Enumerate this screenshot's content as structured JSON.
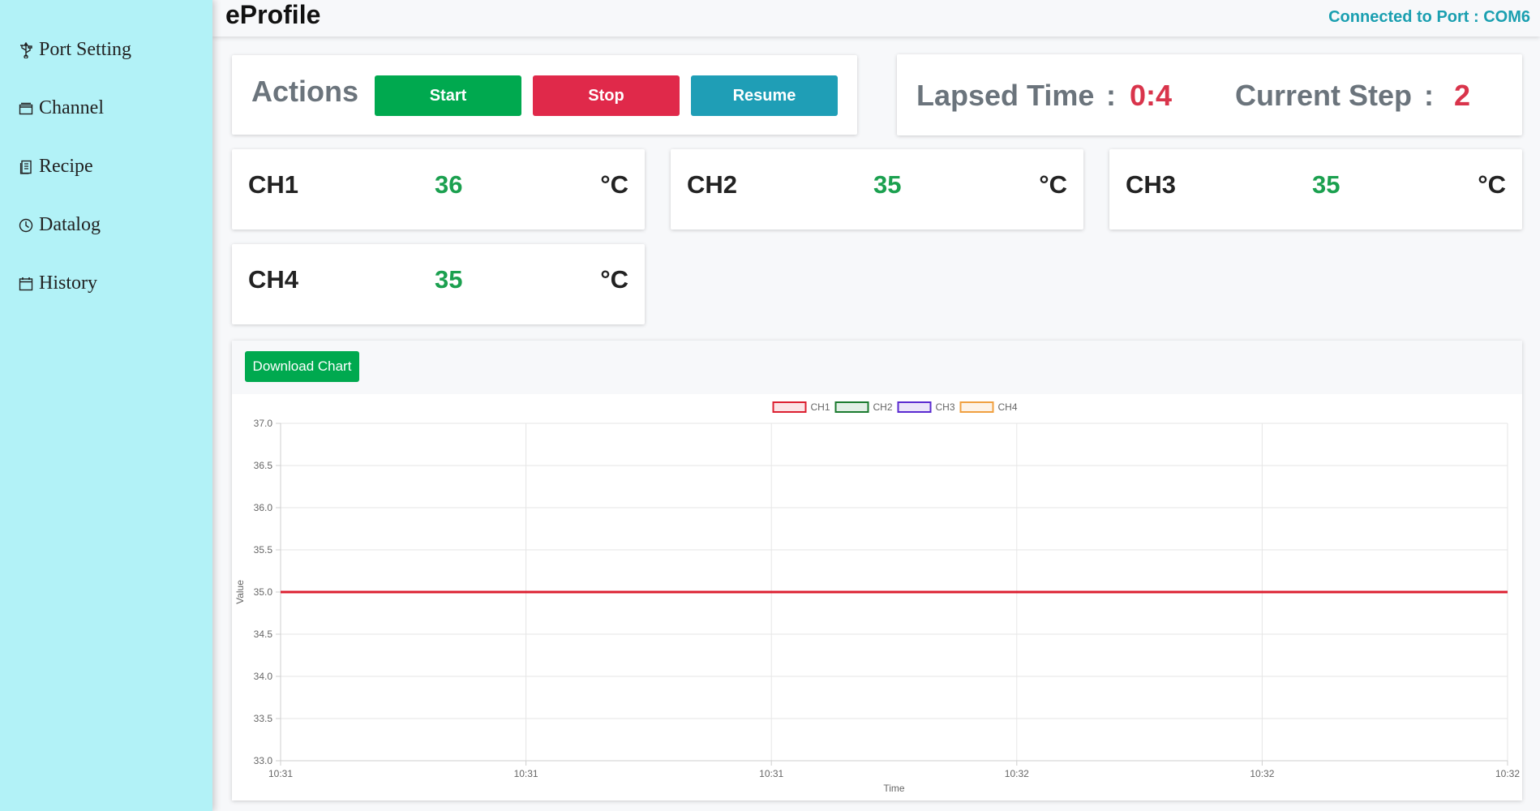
{
  "sidebar": {
    "items": [
      {
        "label": "Port Setting",
        "icon": "usb-icon"
      },
      {
        "label": "Channel",
        "icon": "folder-icon"
      },
      {
        "label": "Recipe",
        "icon": "document-icon"
      },
      {
        "label": "Datalog",
        "icon": "clock-icon"
      },
      {
        "label": "History",
        "icon": "calendar-icon"
      }
    ]
  },
  "header": {
    "title": "eProfile",
    "port_status": "Connected to Port : COM6"
  },
  "actions": {
    "title": "Actions",
    "start_label": "Start",
    "stop_label": "Stop",
    "resume_label": "Resume"
  },
  "status": {
    "lapsed_label": "Lapsed Time",
    "separator": ":",
    "lapsed_value": "0:4",
    "step_label": "Current Step",
    "step_value": "2"
  },
  "channels": [
    {
      "name": "CH1",
      "value": "36",
      "unit": "°C"
    },
    {
      "name": "CH2",
      "value": "35",
      "unit": "°C"
    },
    {
      "name": "CH3",
      "value": "35",
      "unit": "°C"
    },
    {
      "name": "CH4",
      "value": "35",
      "unit": "°C"
    }
  ],
  "chart_panel": {
    "download_label": "Download Chart"
  },
  "colors": {
    "start": "#00a94f",
    "stop": "#e0294a",
    "resume": "#1f9eb6",
    "ch1": "#dc1f30",
    "ch2": "#1a7a2e",
    "ch3": "#5a2ad0",
    "ch4": "#f0a040"
  },
  "chart_data": {
    "type": "line",
    "xlabel": "Time",
    "ylabel": "Value",
    "x": [
      "10:31",
      "10:31",
      "10:31",
      "10:32",
      "10:32",
      "10:32"
    ],
    "ylim": [
      33.0,
      37.0
    ],
    "yticks": [
      "37.0",
      "36.5",
      "36.0",
      "35.5",
      "35.0",
      "34.5",
      "34.0",
      "33.5",
      "33.0"
    ],
    "legend_position": "top",
    "grid": true,
    "series": [
      {
        "name": "CH1",
        "color": "#dc1f30",
        "values": [
          35,
          35,
          35,
          35,
          35,
          35
        ]
      },
      {
        "name": "CH2",
        "color": "#1a7a2e",
        "values": [
          35,
          35,
          35,
          35,
          35,
          35
        ]
      },
      {
        "name": "CH3",
        "color": "#5a2ad0",
        "values": [
          35,
          35,
          35,
          35,
          35,
          35
        ]
      },
      {
        "name": "CH4",
        "color": "#f0a040",
        "values": [
          35,
          35,
          35,
          35,
          35,
          35
        ]
      }
    ]
  }
}
